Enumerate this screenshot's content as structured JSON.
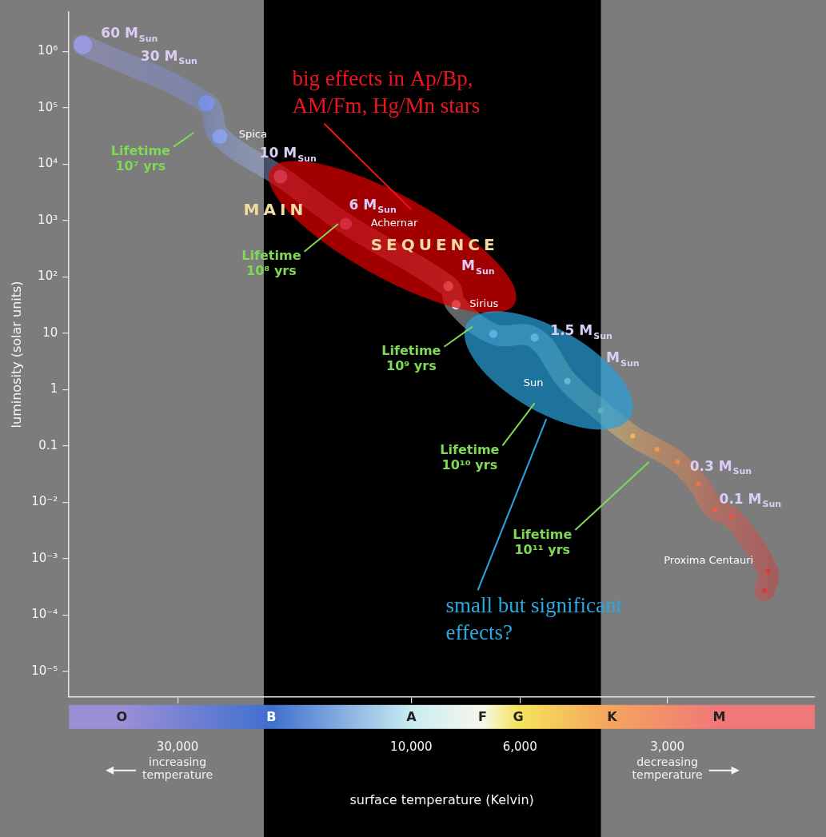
{
  "chart_data": {
    "type": "scatter",
    "log": true,
    "grid": false,
    "x_label": "surface temperature (Kelvin)",
    "y_label": "luminosity (solar units)",
    "xlim": [
      50000,
      1500
    ],
    "xticks": [
      {
        "value": 30000,
        "label": "30,000"
      },
      {
        "value": 10000,
        "label": "10,000"
      },
      {
        "value": 6000,
        "label": "6,000"
      },
      {
        "value": 3000,
        "label": "3,000"
      }
    ],
    "ylim": [
      3.5e-06,
      5000000
    ],
    "yticks": [
      {
        "value": 1e-05,
        "label": "10⁻⁵"
      },
      {
        "value": 0.0001,
        "label": "10⁻⁴"
      },
      {
        "value": 0.001,
        "label": "10⁻³"
      },
      {
        "value": 0.01,
        "label": "10⁻²"
      },
      0.1,
      1,
      10,
      {
        "value": 100,
        "label": "10²"
      },
      {
        "value": 1000,
        "label": "10³"
      },
      {
        "value": 10000,
        "label": "10⁴"
      },
      {
        "value": 100000,
        "label": "10⁵"
      },
      {
        "value": 1000000,
        "label": "10⁶"
      }
    ],
    "x": [
      46800,
      26200,
      24600,
      18500,
      13600,
      8400,
      8100,
      6800,
      5600,
      4800,
      4100,
      3530,
      3150,
      2860,
      2590,
      2400,
      2220,
      1870,
      1900
    ],
    "values": [
      1300000,
      120000,
      31000,
      6000,
      870,
      68,
      32,
      9.7,
      8.3,
      1.4,
      0.42,
      0.15,
      0.087,
      0.052,
      0.021,
      0.0074,
      0.0055,
      0.00059,
      0.00027
    ],
    "colors": [
      "#9a9ae0",
      "#7b8fe0",
      "#8aa0e8",
      "#a8c4f5",
      "#b89ad8",
      "#e0e8f5",
      "#eef2fa",
      "#bfe8f0",
      "#cdeef0",
      "#f5f0b0",
      "#f7d77a",
      "#f6b35e",
      "#f39a50",
      "#f08a4a",
      "#ee7448",
      "#ec6045",
      "#ea5244",
      "#e03c3c",
      "#d83434"
    ],
    "highlight_x": [
      20000,
      4100
    ],
    "spectral_classes": [
      {
        "label": "O",
        "x": 39000,
        "color": "#9c8fd6"
      },
      {
        "label": "B",
        "x": 19300,
        "color": "#3f6fcf"
      },
      {
        "label": "A",
        "x": 10000,
        "color": "#c9ecf2"
      },
      {
        "label": "F",
        "x": 7150,
        "color": "#f7f7ea"
      },
      {
        "label": "G",
        "x": 6050,
        "color": "#f5e35a"
      },
      {
        "label": "K",
        "x": 3890,
        "color": "#f5a35e"
      },
      {
        "label": "M",
        "x": 2350,
        "color": "#f07878"
      }
    ],
    "axis_notes": [
      {
        "lines": [
          "increasing",
          "temperature"
        ],
        "x": 30000,
        "arrow": "left"
      },
      {
        "lines": [
          "decreasing",
          "temperature"
        ],
        "x": 3000,
        "arrow": "right"
      }
    ],
    "main_sequence_label": {
      "color": "#f2dba0",
      "items": [
        {
          "text": "MAIN",
          "x": 22000,
          "y": 1480
        },
        {
          "text": "SEQUENCE",
          "x": 12100,
          "y": 350
        }
      ]
    },
    "mass_labels": {
      "color": "#dccdf5",
      "items": [
        {
          "text": "60 M",
          "sub": "Sun",
          "x": 43000,
          "y": 2000000
        },
        {
          "text": "30 M",
          "sub": "Sun",
          "x": 35700,
          "y": 790000
        },
        {
          "text": "10 M",
          "sub": "Sun",
          "x": 20400,
          "y": 15000
        },
        {
          "text": "6 M",
          "sub": "Sun",
          "x": 13400,
          "y": 1820
        },
        {
          "text": "M",
          "sub": "Sun",
          "x": 7900,
          "y": 150
        },
        {
          "text": "1.5 M",
          "sub": "Sun",
          "x": 5200,
          "y": 10.6
        },
        {
          "text": "M",
          "sub": "Sun",
          "x": 4000,
          "y": 3.5
        },
        {
          "text": "0.3 M",
          "sub": "Sun",
          "x": 2700,
          "y": 0.042
        },
        {
          "text": "0.1 M",
          "sub": "Sun",
          "x": 2350,
          "y": 0.011
        }
      ]
    },
    "star_names": {
      "color": "#ffffff",
      "items": [
        {
          "text": "Spica",
          "x": 22500,
          "y": 33000
        },
        {
          "text": "Achernar",
          "x": 12100,
          "y": 870
        },
        {
          "text": "Sirius",
          "x": 7600,
          "y": 32
        },
        {
          "text": "Sun",
          "x": 5900,
          "y": 1.3
        },
        {
          "text": "Proxima Centauri",
          "x": 3050,
          "y": 0.0009
        }
      ]
    },
    "lifetime_labels": {
      "color": "#7fd957",
      "items": [
        {
          "lines": [
            "Lifetime",
            "10⁷ yrs"
          ],
          "x": 35700,
          "y": 12000,
          "points_to": [
            27800,
            36000
          ]
        },
        {
          "lines": [
            "Lifetime",
            "10⁸ yrs"
          ],
          "x": 19300,
          "y": 166,
          "points_to": [
            14100,
            870
          ]
        },
        {
          "lines": [
            "Lifetime",
            "10⁹ yrs"
          ],
          "x": 10000,
          "y": 3.4,
          "points_to": [
            7500,
            13
          ]
        },
        {
          "lines": [
            "Lifetime",
            "10¹⁰ yrs"
          ],
          "x": 7600,
          "y": 0.06,
          "points_to": [
            5600,
            0.57
          ]
        },
        {
          "lines": [
            "Lifetime",
            "10¹¹ yrs"
          ],
          "x": 5400,
          "y": 0.0019,
          "points_to": [
            3270,
            0.052
          ]
        }
      ]
    },
    "regions": [
      {
        "from": [
          17800,
          5200
        ],
        "to": [
          6700,
          50
        ],
        "color": "#e00000"
      },
      {
        "from": [
          7070,
          9.7
        ],
        "to": [
          3890,
          0.49
        ],
        "color": "#2a9fd8"
      }
    ],
    "annotations": [
      {
        "lines": [
          "big effects in Ap/Bp,",
          "AM/Fm, Hg/Mn stars"
        ],
        "x": 17500,
        "y": 180000,
        "color": "#f0141e",
        "points_to": [
          10000,
          1560
        ]
      },
      {
        "lines": [
          "small but significant",
          "effects?"
        ],
        "x": 8500,
        "y": 7.9e-05,
        "color": "#2aa8df",
        "points_to": [
          5300,
          0.3
        ]
      }
    ]
  }
}
